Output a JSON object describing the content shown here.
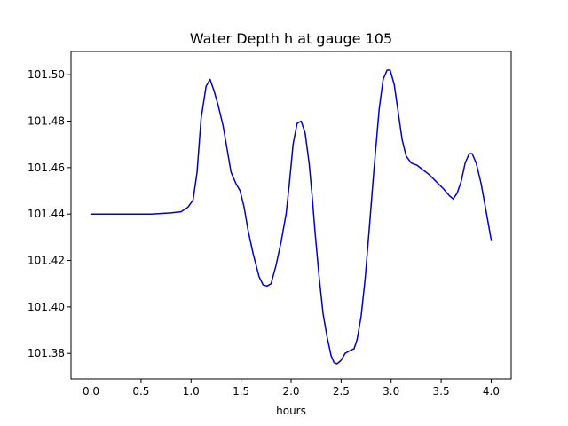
{
  "chart_data": {
    "type": "line",
    "title": "Water Depth h at gauge 105",
    "xlabel": "hours",
    "ylabel": "",
    "xlim": [
      -0.2,
      4.2
    ],
    "ylim": [
      101.369,
      101.51
    ],
    "grid": false,
    "x_ticks": [
      0.0,
      0.5,
      1.0,
      1.5,
      2.0,
      2.5,
      3.0,
      3.5,
      4.0
    ],
    "x_tick_labels": [
      "0.0",
      "0.5",
      "1.0",
      "1.5",
      "2.0",
      "2.5",
      "3.0",
      "3.5",
      "4.0"
    ],
    "y_ticks": [
      101.38,
      101.4,
      101.42,
      101.44,
      101.46,
      101.48,
      101.5
    ],
    "y_tick_labels": [
      "101.38",
      "101.40",
      "101.42",
      "101.44",
      "101.46",
      "101.48",
      "101.50"
    ],
    "series": [
      {
        "color": "#0000cc",
        "points": [
          [
            0.0,
            101.44
          ],
          [
            0.2,
            101.44
          ],
          [
            0.4,
            101.44
          ],
          [
            0.6,
            101.44
          ],
          [
            0.8,
            101.4405
          ],
          [
            0.9,
            101.441
          ],
          [
            0.97,
            101.443
          ],
          [
            1.02,
            101.446
          ],
          [
            1.06,
            101.458
          ],
          [
            1.1,
            101.481
          ],
          [
            1.15,
            101.495
          ],
          [
            1.19,
            101.498
          ],
          [
            1.23,
            101.493
          ],
          [
            1.27,
            101.487
          ],
          [
            1.32,
            101.478
          ],
          [
            1.36,
            101.468
          ],
          [
            1.4,
            101.458
          ],
          [
            1.45,
            101.453
          ],
          [
            1.49,
            101.45
          ],
          [
            1.53,
            101.443
          ],
          [
            1.57,
            101.433
          ],
          [
            1.62,
            101.423
          ],
          [
            1.68,
            101.413
          ],
          [
            1.72,
            101.4095
          ],
          [
            1.76,
            101.409
          ],
          [
            1.8,
            101.41
          ],
          [
            1.85,
            101.418
          ],
          [
            1.9,
            101.428
          ],
          [
            1.95,
            101.44
          ],
          [
            1.98,
            101.452
          ],
          [
            2.02,
            101.47
          ],
          [
            2.06,
            101.479
          ],
          [
            2.1,
            101.48
          ],
          [
            2.14,
            101.475
          ],
          [
            2.18,
            101.462
          ],
          [
            2.21,
            101.448
          ],
          [
            2.24,
            101.432
          ],
          [
            2.28,
            101.413
          ],
          [
            2.32,
            101.397
          ],
          [
            2.36,
            101.387
          ],
          [
            2.4,
            101.379
          ],
          [
            2.43,
            101.376
          ],
          [
            2.46,
            101.3755
          ],
          [
            2.5,
            101.377
          ],
          [
            2.54,
            101.38
          ],
          [
            2.58,
            101.381
          ],
          [
            2.63,
            101.382
          ],
          [
            2.66,
            101.386
          ],
          [
            2.7,
            101.396
          ],
          [
            2.74,
            101.412
          ],
          [
            2.78,
            101.433
          ],
          [
            2.83,
            101.46
          ],
          [
            2.88,
            101.485
          ],
          [
            2.92,
            101.498
          ],
          [
            2.96,
            101.502
          ],
          [
            2.99,
            101.502
          ],
          [
            3.03,
            101.496
          ],
          [
            3.07,
            101.484
          ],
          [
            3.11,
            101.472
          ],
          [
            3.15,
            101.465
          ],
          [
            3.2,
            101.462
          ],
          [
            3.26,
            101.461
          ],
          [
            3.32,
            101.459
          ],
          [
            3.38,
            101.457
          ],
          [
            3.45,
            101.454
          ],
          [
            3.52,
            101.451
          ],
          [
            3.58,
            101.448
          ],
          [
            3.62,
            101.4465
          ],
          [
            3.66,
            101.449
          ],
          [
            3.7,
            101.454
          ],
          [
            3.74,
            101.462
          ],
          [
            3.78,
            101.466
          ],
          [
            3.81,
            101.466
          ],
          [
            3.85,
            101.462
          ],
          [
            3.9,
            101.453
          ],
          [
            3.95,
            101.441
          ],
          [
            4.0,
            101.429
          ]
        ]
      }
    ]
  }
}
